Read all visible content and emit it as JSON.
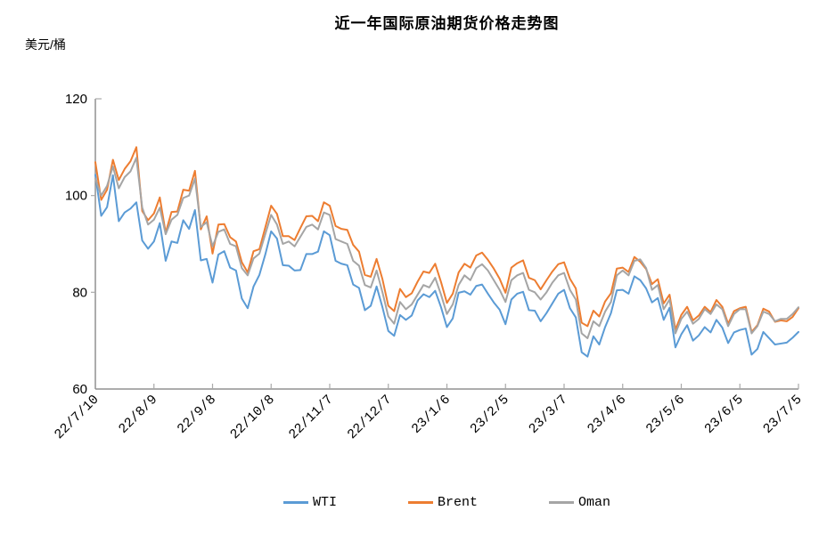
{
  "title": "近一年国际原油期货价格走势图",
  "y_axis_unit": "美元/桶",
  "colors": {
    "axis": "#909090",
    "tick": "#aaaaaa",
    "wti": "#5B9BD5",
    "brent": "#ED7D31",
    "oman": "#A5A5A5"
  },
  "chart_data": {
    "type": "line",
    "title": "近一年国际原油期货价格走势图",
    "ylabel": "美元/桶",
    "ylim": [
      60,
      120
    ],
    "y_ticks": [
      60,
      80,
      100,
      120
    ],
    "x_tick_labels": [
      "22/7/10",
      "22/8/9",
      "22/9/8",
      "22/10/8",
      "22/11/7",
      "22/12/7",
      "23/1/6",
      "23/2/5",
      "23/3/7",
      "23/4/6",
      "23/5/6",
      "23/6/5",
      "23/7/5"
    ],
    "x_sampling_days": 3,
    "points_per_series": 121,
    "grid": false,
    "legend_position": "bottom",
    "series": [
      {
        "name": "WTI",
        "color": "#5B9BD5",
        "values": [
          104.3,
          95.8,
          97.6,
          104.2,
          94.7,
          96.5,
          97.3,
          98.6,
          90.7,
          89.0,
          90.5,
          94.3,
          86.5,
          90.5,
          90.2,
          94.9,
          93.1,
          97.0,
          86.6,
          86.9,
          82.0,
          87.8,
          88.5,
          85.1,
          84.5,
          78.7,
          76.7,
          81.2,
          83.6,
          87.8,
          92.6,
          91.1,
          85.6,
          85.5,
          84.5,
          84.6,
          87.9,
          87.9,
          88.4,
          92.6,
          91.8,
          86.5,
          85.9,
          85.6,
          81.6,
          80.9,
          76.3,
          77.2,
          81.2,
          76.9,
          72.0,
          71.0,
          75.3,
          74.3,
          75.2,
          78.3,
          79.6,
          79.0,
          80.3,
          76.9,
          72.8,
          74.6,
          79.9,
          80.2,
          79.5,
          81.3,
          81.6,
          79.7,
          77.9,
          76.4,
          73.4,
          78.5,
          79.7,
          80.1,
          76.3,
          76.2,
          74.0,
          75.7,
          77.7,
          79.7,
          80.5,
          76.7,
          74.8,
          67.6,
          66.7,
          70.9,
          69.2,
          72.8,
          75.7,
          80.4,
          80.5,
          79.7,
          83.3,
          82.5,
          80.8,
          77.9,
          78.8,
          74.3,
          76.8,
          68.6,
          71.3,
          73.2,
          70.0,
          71.1,
          72.8,
          71.7,
          74.3,
          72.7,
          69.5,
          71.7,
          72.2,
          72.5,
          67.1,
          68.3,
          71.8,
          70.5,
          69.2,
          69.4,
          69.6,
          70.6,
          71.8
        ]
      },
      {
        "name": "Brent",
        "color": "#ED7D31",
        "values": [
          106.9,
          99.1,
          101.2,
          107.4,
          103.2,
          105.5,
          107.1,
          110.0,
          96.8,
          94.9,
          96.3,
          99.6,
          92.3,
          96.6,
          96.7,
          101.2,
          101.0,
          105.1,
          93.0,
          95.7,
          88.0,
          94.0,
          94.1,
          91.4,
          90.5,
          86.2,
          84.1,
          88.5,
          88.9,
          93.4,
          97.9,
          96.2,
          91.6,
          91.6,
          90.8,
          93.3,
          95.7,
          95.8,
          94.7,
          98.6,
          97.9,
          93.7,
          93.1,
          92.9,
          89.8,
          88.4,
          83.6,
          83.2,
          86.9,
          82.7,
          77.2,
          76.1,
          80.7,
          79.0,
          79.8,
          82.2,
          84.3,
          84.0,
          85.9,
          82.1,
          77.8,
          79.7,
          84.1,
          85.9,
          85.1,
          87.6,
          88.2,
          86.7,
          84.9,
          82.8,
          79.9,
          85.1,
          86.0,
          86.6,
          83.0,
          82.5,
          80.6,
          82.5,
          84.3,
          85.8,
          86.2,
          82.8,
          80.8,
          73.7,
          73.0,
          76.2,
          75.0,
          78.1,
          79.8,
          84.9,
          85.1,
          84.2,
          87.3,
          86.3,
          84.8,
          81.7,
          82.7,
          77.7,
          79.5,
          72.3,
          75.3,
          77.0,
          74.2,
          75.2,
          77.0,
          75.9,
          78.4,
          77.0,
          73.5,
          76.1,
          76.7,
          77.0,
          71.8,
          73.2,
          76.6,
          76.0,
          73.9,
          74.2,
          74.0,
          74.9,
          76.7
        ]
      },
      {
        "name": "Oman",
        "color": "#A5A5A5",
        "values": [
          103.5,
          100.0,
          102.0,
          106.0,
          101.5,
          103.8,
          105.0,
          107.8,
          97.5,
          94.0,
          95.0,
          97.5,
          92.0,
          95.0,
          96.0,
          99.5,
          100.0,
          103.5,
          93.5,
          94.5,
          89.5,
          92.5,
          93.0,
          90.0,
          89.5,
          85.0,
          83.5,
          87.0,
          88.0,
          92.0,
          96.0,
          94.0,
          90.0,
          90.5,
          89.5,
          91.5,
          93.5,
          94.0,
          93.0,
          96.5,
          96.0,
          91.0,
          90.5,
          90.0,
          86.5,
          85.5,
          81.5,
          81.0,
          84.5,
          80.0,
          75.0,
          73.5,
          78.0,
          76.5,
          77.5,
          79.5,
          81.5,
          81.0,
          83.0,
          79.5,
          75.5,
          77.5,
          81.5,
          83.5,
          82.5,
          85.0,
          85.8,
          84.5,
          82.5,
          80.5,
          78.0,
          82.5,
          83.5,
          84.0,
          80.5,
          80.0,
          78.5,
          80.0,
          82.0,
          83.5,
          84.0,
          80.5,
          78.5,
          71.5,
          70.5,
          74.0,
          73.0,
          76.0,
          78.0,
          83.5,
          84.5,
          83.5,
          86.5,
          86.8,
          85.0,
          80.5,
          81.5,
          76.5,
          78.5,
          71.5,
          74.5,
          76.0,
          73.5,
          74.5,
          76.5,
          75.5,
          77.5,
          76.5,
          73.0,
          75.5,
          76.5,
          76.5,
          71.5,
          73.0,
          76.0,
          75.5,
          74.0,
          74.5,
          74.5,
          75.5,
          76.9
        ]
      }
    ]
  }
}
